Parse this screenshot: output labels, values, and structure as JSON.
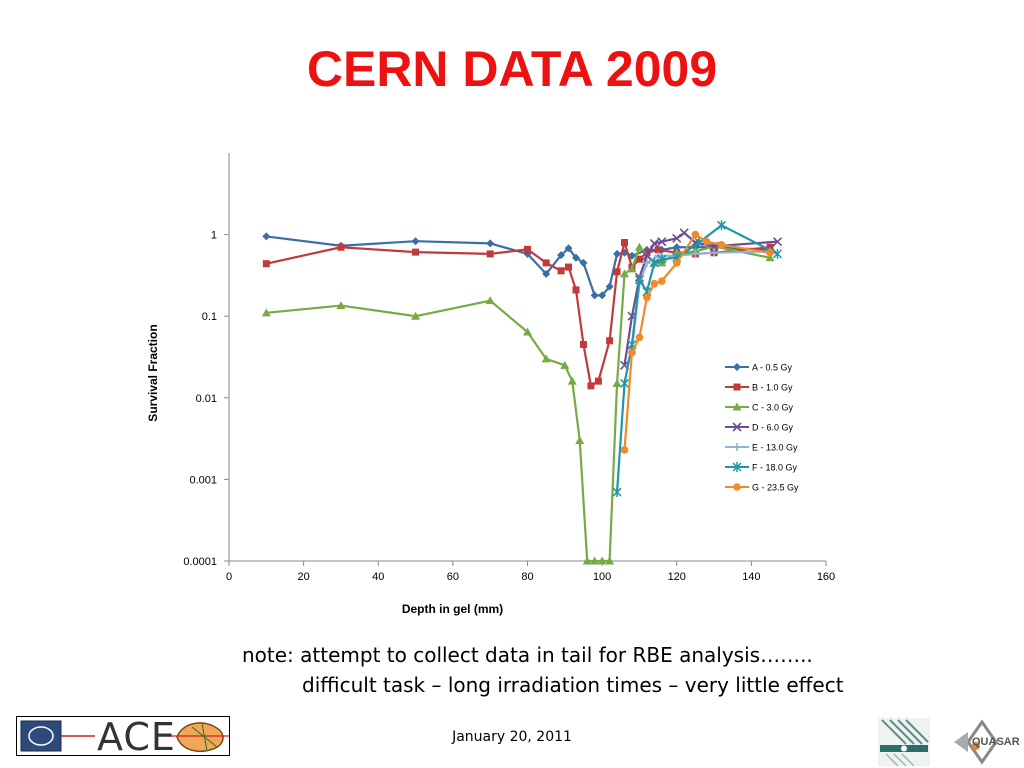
{
  "slide": {
    "title": "CERN DATA 2009",
    "note_line1": "note: attempt to collect data in tail for RBE analysis……..",
    "note_line2": "difficult task – long irradiation times – very little effect",
    "date": "January 20, 2011",
    "logo_left_text": "ACE",
    "logo_right_text": "QUASAR"
  },
  "colors": {
    "title": "#ee1111"
  },
  "chart_data": {
    "type": "line",
    "title": "",
    "xlabel": "Depth in gel (mm)",
    "ylabel": "Survival Fraction",
    "xlim": [
      0,
      160
    ],
    "ylim": [
      0.0001,
      10
    ],
    "yscale": "log",
    "x_ticks": [
      0,
      20,
      40,
      60,
      80,
      100,
      120,
      140,
      160
    ],
    "y_ticks": [
      0.0001,
      0.001,
      0.01,
      0.1,
      1
    ],
    "y_tick_labels": [
      "0.0001",
      "0.001",
      "0.01",
      "0.1",
      "1"
    ],
    "grid": false,
    "legend_position": "right-middle",
    "series": [
      {
        "name": "A - 0.5 Gy",
        "color": "#3a6ea5",
        "marker": "diamond",
        "points": [
          [
            10,
            0.95
          ],
          [
            30,
            0.73
          ],
          [
            50,
            0.83
          ],
          [
            70,
            0.78
          ],
          [
            80,
            0.58
          ],
          [
            85,
            0.33
          ],
          [
            89,
            0.56
          ],
          [
            91,
            0.68
          ],
          [
            93,
            0.52
          ],
          [
            95,
            0.45
          ],
          [
            98,
            0.18
          ],
          [
            100,
            0.18
          ],
          [
            102,
            0.23
          ],
          [
            104,
            0.58
          ],
          [
            106,
            0.6
          ],
          [
            108,
            0.55
          ],
          [
            112,
            0.65
          ],
          [
            116,
            0.65
          ],
          [
            120,
            0.7
          ],
          [
            125,
            0.7
          ],
          [
            130,
            0.7
          ],
          [
            145,
            0.65
          ]
        ]
      },
      {
        "name": "B - 1.0 Gy",
        "color": "#c0393b",
        "marker": "square",
        "points": [
          [
            10,
            0.44
          ],
          [
            30,
            0.7
          ],
          [
            50,
            0.61
          ],
          [
            70,
            0.58
          ],
          [
            80,
            0.66
          ],
          [
            85,
            0.45
          ],
          [
            89,
            0.36
          ],
          [
            91,
            0.4
          ],
          [
            93,
            0.21
          ],
          [
            95,
            0.045
          ],
          [
            97,
            0.014
          ],
          [
            99,
            0.016
          ],
          [
            102,
            0.05
          ],
          [
            104,
            0.35
          ],
          [
            106,
            0.8
          ],
          [
            108,
            0.4
          ],
          [
            110,
            0.5
          ],
          [
            112,
            0.6
          ],
          [
            115,
            0.65
          ],
          [
            120,
            0.6
          ],
          [
            125,
            0.58
          ],
          [
            130,
            0.6
          ],
          [
            145,
            0.7
          ]
        ]
      },
      {
        "name": "C - 3.0 Gy",
        "color": "#77aa44",
        "marker": "triangle",
        "points": [
          [
            10,
            0.11
          ],
          [
            30,
            0.135
          ],
          [
            50,
            0.1
          ],
          [
            70,
            0.155
          ],
          [
            80,
            0.064
          ],
          [
            85,
            0.03
          ],
          [
            90,
            0.025
          ],
          [
            92,
            0.016
          ],
          [
            94,
            0.003
          ],
          [
            96,
            0.0001
          ],
          [
            98,
            0.0001
          ],
          [
            100,
            0.0001
          ],
          [
            102,
            0.0001
          ],
          [
            104,
            0.015
          ],
          [
            106,
            0.33
          ],
          [
            108,
            0.38
          ],
          [
            110,
            0.7
          ],
          [
            114,
            0.45
          ],
          [
            116,
            0.45
          ],
          [
            120,
            0.6
          ],
          [
            125,
            0.62
          ],
          [
            130,
            0.72
          ],
          [
            145,
            0.52
          ]
        ]
      },
      {
        "name": "D - 6.0 Gy",
        "color": "#6e4d92",
        "marker": "x",
        "points": [
          [
            106,
            0.025
          ],
          [
            108,
            0.1
          ],
          [
            110,
            0.3
          ],
          [
            112,
            0.55
          ],
          [
            114,
            0.78
          ],
          [
            116,
            0.82
          ],
          [
            120,
            0.9
          ],
          [
            122,
            1.05
          ],
          [
            125,
            0.8
          ],
          [
            130,
            0.72
          ],
          [
            147,
            0.82
          ]
        ]
      },
      {
        "name": "E - 13.0 Gy",
        "color": "#8fb3d9",
        "marker": "plus",
        "points": [
          [
            108,
            0.04
          ],
          [
            110,
            0.25
          ],
          [
            112,
            0.45
          ],
          [
            115,
            0.55
          ],
          [
            120,
            0.55
          ],
          [
            125,
            0.58
          ],
          [
            130,
            0.6
          ],
          [
            145,
            0.62
          ]
        ]
      },
      {
        "name": "F - 18.0 Gy",
        "color": "#1f97a8",
        "marker": "star",
        "points": [
          [
            104,
            0.0007
          ],
          [
            106,
            0.015
          ],
          [
            108,
            0.045
          ],
          [
            110,
            0.28
          ],
          [
            112,
            0.2
          ],
          [
            114,
            0.45
          ],
          [
            116,
            0.5
          ],
          [
            120,
            0.52
          ],
          [
            126,
            0.8
          ],
          [
            132,
            1.3
          ],
          [
            147,
            0.58
          ]
        ]
      },
      {
        "name": "G - 23.5 Gy",
        "color": "#f08a2a",
        "marker": "circle",
        "points": [
          [
            106,
            0.0023
          ],
          [
            108,
            0.036
          ],
          [
            110,
            0.055
          ],
          [
            112,
            0.17
          ],
          [
            114,
            0.25
          ],
          [
            116,
            0.27
          ],
          [
            120,
            0.45
          ],
          [
            125,
            1.0
          ],
          [
            128,
            0.82
          ],
          [
            132,
            0.75
          ],
          [
            145,
            0.6
          ]
        ]
      }
    ]
  }
}
